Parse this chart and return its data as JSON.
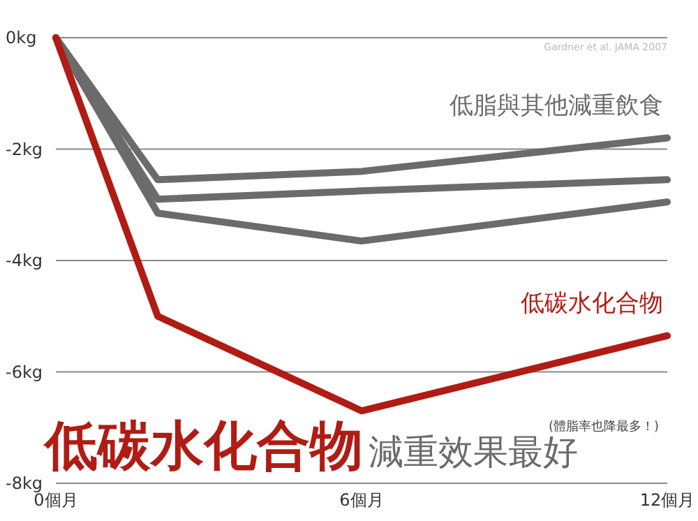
{
  "chart_data": {
    "type": "line",
    "title": "低碳水化合物",
    "subtitle": "減重效果最好",
    "annotations": [
      "(體脂率也降最多！)",
      "Gardner et al. JAMA 2007"
    ],
    "x": [
      0,
      2,
      6,
      12
    ],
    "series": [
      {
        "name": "低脂與其他減重飲食",
        "color": "#6b6b6b",
        "values": [
          0,
          -2.55,
          -2.4,
          -1.8
        ]
      },
      {
        "color": "#6b6b6b",
        "values": [
          0,
          -2.9,
          -2.75,
          -2.55
        ]
      },
      {
        "color": "#6b6b6b",
        "values": [
          0,
          -3.15,
          -3.65,
          -2.95
        ]
      },
      {
        "name": "低碳水化合物",
        "color": "#b01c14",
        "values": [
          0,
          -5.0,
          -6.7,
          -5.35
        ]
      }
    ],
    "xlim": [
      0,
      12
    ],
    "xticks": [
      {
        "value": 0,
        "label": "0個月"
      },
      {
        "value": 6,
        "label": "6個月"
      },
      {
        "value": 12,
        "label": "12個月"
      }
    ],
    "ylim": [
      -8,
      0
    ],
    "yticks": [
      {
        "value": 0,
        "label": "0kg"
      },
      {
        "value": -2,
        "label": "-2kg"
      },
      {
        "value": -4,
        "label": "-4kg"
      },
      {
        "value": -6,
        "label": "-6kg"
      },
      {
        "value": -8,
        "label": "-8kg"
      }
    ],
    "grid": "y",
    "marker": "none",
    "line_style": "solid"
  }
}
